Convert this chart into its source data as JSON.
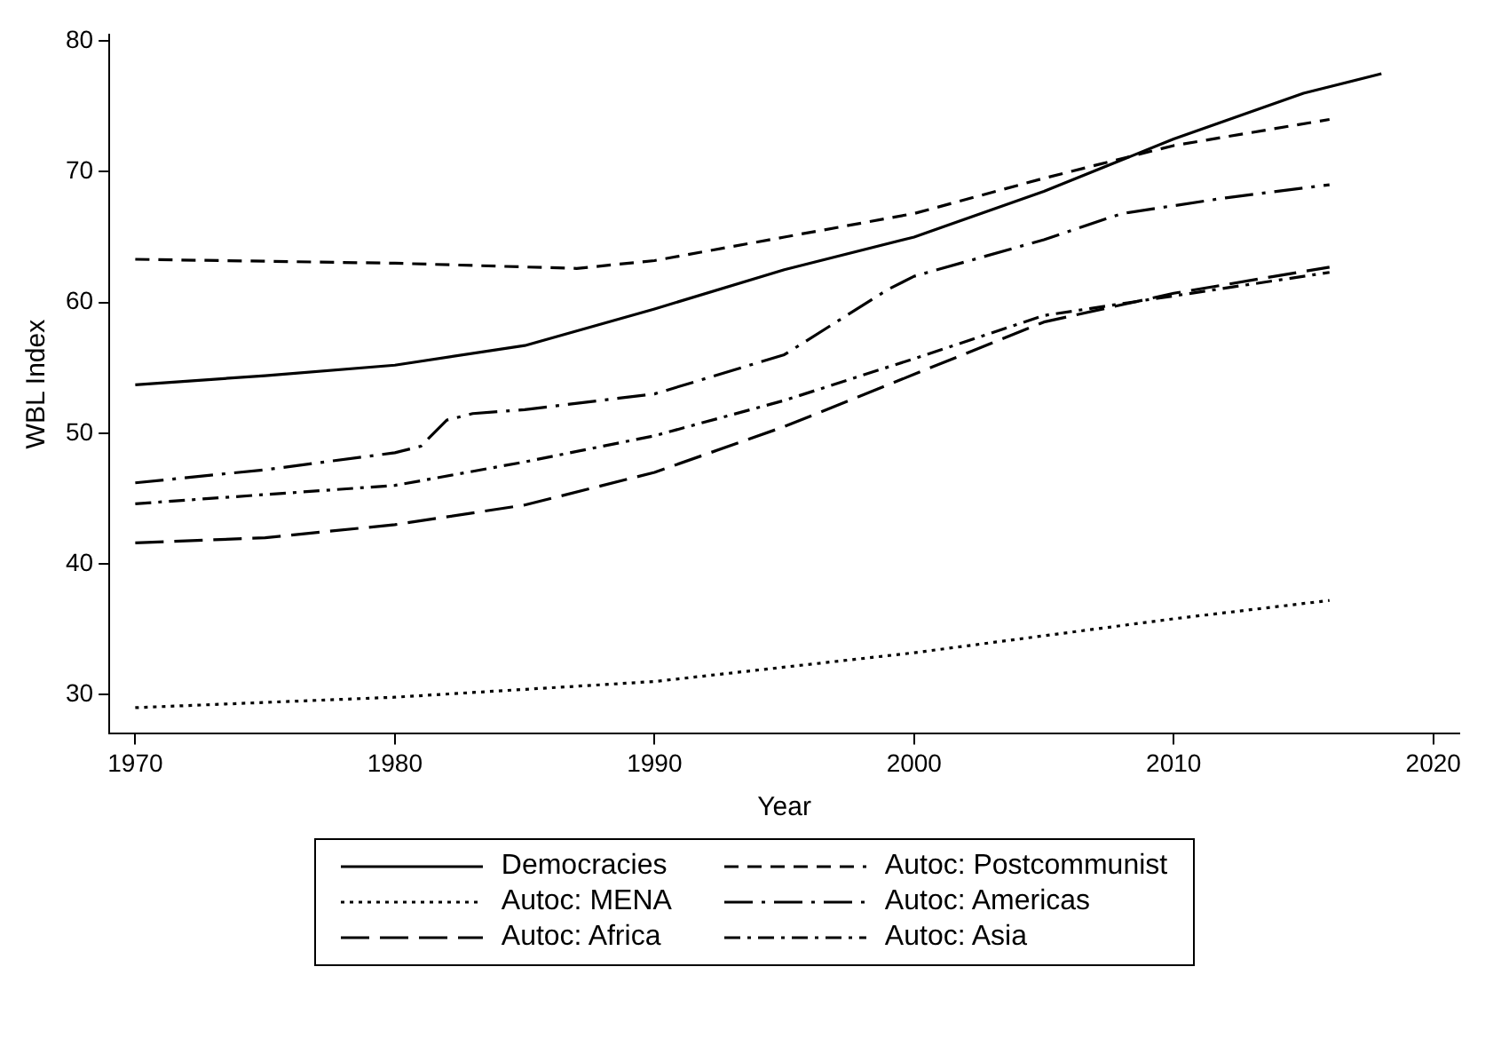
{
  "chart_data": {
    "type": "line",
    "xlabel": "Year",
    "ylabel": "WBL Index",
    "xlim": [
      1969,
      2021
    ],
    "xticks": [
      1970,
      1980,
      1990,
      2000,
      2010,
      2020
    ],
    "ylim": [
      27,
      80.5
    ],
    "yticks": [
      30,
      40,
      50,
      60,
      70,
      80
    ],
    "grid": false,
    "legend": "bottom",
    "marker": "none",
    "series": [
      {
        "name": "Democracies",
        "color": "#000000",
        "line_style": "solid",
        "x": [
          1970,
          1975,
          1980,
          1985,
          1990,
          1995,
          2000,
          2005,
          2010,
          2015,
          2018
        ],
        "values": [
          53.7,
          54.4,
          55.2,
          56.7,
          59.5,
          62.5,
          65,
          68.5,
          72.5,
          76,
          77.5
        ]
      },
      {
        "name": "Autoc: Postcommunist",
        "color": "#000000",
        "line_style": "dashed",
        "x": [
          1970,
          1980,
          1987,
          1990,
          1995,
          2000,
          2005,
          2010,
          2016
        ],
        "values": [
          63.3,
          63,
          62.6,
          63.2,
          65,
          66.8,
          69.5,
          72,
          74
        ]
      },
      {
        "name": "Autoc: MENA",
        "color": "#000000",
        "line_style": "dotted",
        "x": [
          1970,
          1980,
          1990,
          2000,
          2010,
          2016
        ],
        "values": [
          29,
          29.8,
          31,
          33.2,
          35.8,
          37.2
        ]
      },
      {
        "name": "Autoc: Americas",
        "color": "#000000",
        "line_style": "longdashdot",
        "x": [
          1970,
          1975,
          1980,
          1981,
          1982,
          1983,
          1985,
          1990,
          1995,
          1997,
          1999,
          2000,
          2005,
          2008,
          2012,
          2016
        ],
        "values": [
          46.2,
          47.2,
          48.5,
          49,
          51,
          51.5,
          51.8,
          53,
          56,
          58.5,
          61,
          62,
          64.8,
          66.8,
          68,
          69
        ]
      },
      {
        "name": "Autoc: Africa",
        "color": "#000000",
        "line_style": "longdash",
        "x": [
          1970,
          1975,
          1980,
          1985,
          1990,
          1995,
          2000,
          2005,
          2010,
          2016
        ],
        "values": [
          41.6,
          42,
          43,
          44.5,
          47,
          50.5,
          54.5,
          58.5,
          60.7,
          62.7
        ]
      },
      {
        "name": "Autoc: Asia",
        "color": "#000000",
        "line_style": "dashdot",
        "x": [
          1970,
          1975,
          1980,
          1985,
          1990,
          1995,
          2000,
          2005,
          2010,
          2016
        ],
        "values": [
          44.6,
          45.3,
          46,
          47.8,
          49.8,
          52.5,
          55.7,
          59,
          60.5,
          62.3
        ]
      }
    ]
  }
}
